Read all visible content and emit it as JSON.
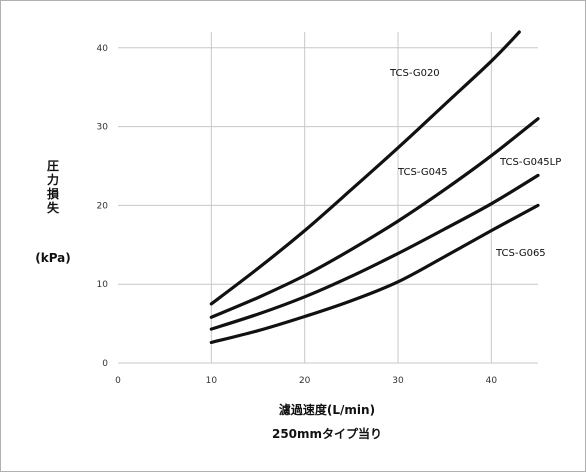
{
  "chart_data": {
    "type": "line",
    "title": "",
    "xlabel": "濾過速度(L/min)",
    "xlabel_sub": "250mmタイプ当り",
    "ylabel_lines": [
      "圧",
      "力",
      "損",
      "失"
    ],
    "ylabel_unit": "(kPa)",
    "xlim": [
      0,
      45
    ],
    "ylim": [
      0,
      42
    ],
    "x_ticks": [
      0,
      10,
      20,
      30,
      40
    ],
    "y_ticks": [
      0,
      10,
      20,
      30,
      40
    ],
    "grid": true,
    "line_color": "#111111",
    "grid_color": "#c8c8c8",
    "series": [
      {
        "name": "TCS-G020",
        "x": [
          10,
          15,
          20,
          25,
          30,
          35,
          40,
          43
        ],
        "y": [
          7.5,
          12,
          16.8,
          22,
          27.3,
          32.8,
          38.3,
          42
        ]
      },
      {
        "name": "TCS-G045",
        "x": [
          10,
          15,
          20,
          25,
          30,
          35,
          40,
          45
        ],
        "y": [
          5.8,
          8.3,
          11.1,
          14.4,
          18,
          22,
          26.3,
          31
        ]
      },
      {
        "name": "TCS-G045LP",
        "x": [
          10,
          15,
          20,
          25,
          30,
          35,
          40,
          45
        ],
        "y": [
          4.3,
          6.2,
          8.4,
          11,
          13.9,
          17,
          20.2,
          23.8
        ]
      },
      {
        "name": "TCS-G065",
        "x": [
          10,
          15,
          20,
          25,
          30,
          35,
          40,
          45
        ],
        "y": [
          2.6,
          4.1,
          5.9,
          7.9,
          10.3,
          13.5,
          16.8,
          20
        ]
      }
    ]
  }
}
